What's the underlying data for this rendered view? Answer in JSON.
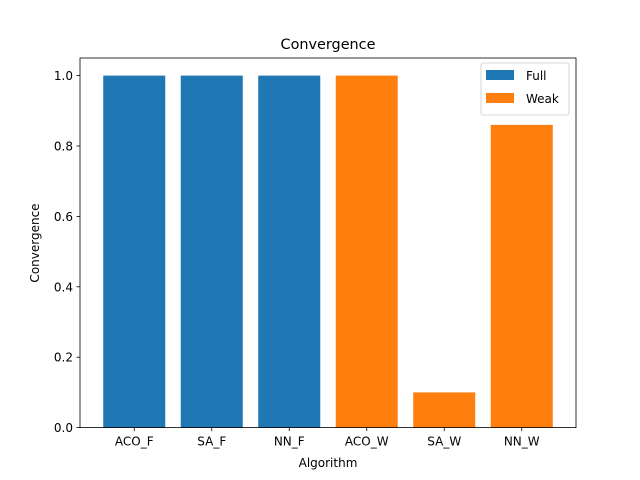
{
  "chart_data": {
    "type": "bar",
    "title": "Convergence",
    "xlabel": "Algorithm",
    "ylabel": "Convergence",
    "categories": [
      "ACO_F",
      "SA_F",
      "NN_F",
      "ACO_W",
      "SA_W",
      "NN_W"
    ],
    "series": [
      {
        "name": "Full",
        "color": "#1f77b4",
        "values": [
          1.0,
          1.0,
          1.0,
          null,
          null,
          null
        ]
      },
      {
        "name": "Weak",
        "color": "#ff7f0e",
        "values": [
          null,
          null,
          null,
          1.0,
          0.1,
          0.86
        ]
      }
    ],
    "ylim": [
      0,
      1.05
    ],
    "yticks": [
      "0.0",
      "0.2",
      "0.4",
      "0.6",
      "0.8",
      "1.0"
    ],
    "legend_position": "top-right",
    "grid": false
  }
}
